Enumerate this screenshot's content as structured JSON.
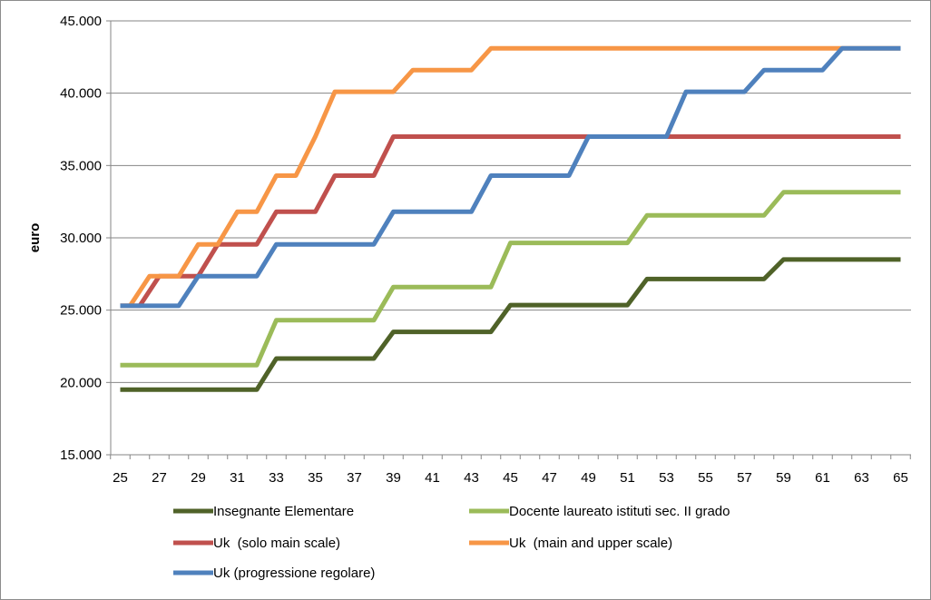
{
  "chart_data": {
    "type": "line",
    "title": "",
    "xlabel": "",
    "ylabel": "euro",
    "ylim": [
      15000,
      45000
    ],
    "y_ticks": [
      15000,
      20000,
      25000,
      30000,
      35000,
      40000,
      45000
    ],
    "y_tick_labels": [
      "15.000",
      "20.000",
      "25.000",
      "30.000",
      "35.000",
      "40.000",
      "45.000"
    ],
    "x_range": [
      25,
      65
    ],
    "x_tick_labels": [
      "25",
      "27",
      "29",
      "31",
      "33",
      "35",
      "37",
      "39",
      "41",
      "43",
      "45",
      "47",
      "49",
      "51",
      "53",
      "55",
      "57",
      "59",
      "61",
      "63",
      "65"
    ],
    "grid": "horizontal",
    "legend_position": "bottom",
    "series": [
      {
        "name": "Insegnante Elementare",
        "color": "#4f6228",
        "x": [
          25,
          32,
          33,
          38,
          39,
          44,
          45,
          51,
          52,
          58,
          59,
          65
        ],
        "y": [
          19500,
          19500,
          21650,
          21650,
          23500,
          23500,
          25350,
          25350,
          27150,
          27150,
          28500,
          28500
        ]
      },
      {
        "name": "Docente laureato istituti sec. II grado",
        "color": "#9bbb59",
        "x": [
          25,
          32,
          33,
          38,
          39,
          44,
          45,
          51,
          52,
          58,
          59,
          65
        ],
        "y": [
          21200,
          21200,
          24300,
          24300,
          26600,
          26600,
          29650,
          29650,
          31550,
          31550,
          33150,
          33150
        ]
      },
      {
        "name": "Uk  (solo main scale)",
        "color": "#c0504d",
        "x": [
          25,
          26,
          27,
          29,
          30,
          32,
          33,
          35,
          36,
          38,
          39,
          65
        ],
        "y": [
          25300,
          25300,
          27350,
          27350,
          29550,
          29550,
          31800,
          31800,
          34300,
          34300,
          37000,
          37000
        ]
      },
      {
        "name": "Uk  (main and upper scale)",
        "color": "#f79646",
        "x": [
          25,
          25.5,
          26.5,
          28,
          29,
          30,
          31,
          32,
          33,
          34,
          35,
          36,
          39,
          40,
          43,
          44,
          62,
          65
        ],
        "y": [
          25300,
          25300,
          27350,
          27350,
          29550,
          29550,
          31800,
          31800,
          34300,
          34300,
          37000,
          40100,
          40100,
          41600,
          41600,
          43100,
          43100,
          43100
        ]
      },
      {
        "name": "Uk (progressione regolare)",
        "color": "#4f81bd",
        "x": [
          25,
          28,
          29,
          32,
          33,
          38,
          39,
          43,
          44,
          48,
          49,
          53,
          54,
          57,
          58,
          61,
          62,
          65
        ],
        "y": [
          25300,
          25300,
          27350,
          27350,
          29550,
          29550,
          31800,
          31800,
          34300,
          34300,
          37000,
          37000,
          40100,
          40100,
          41600,
          41600,
          43100,
          43100
        ]
      }
    ]
  }
}
